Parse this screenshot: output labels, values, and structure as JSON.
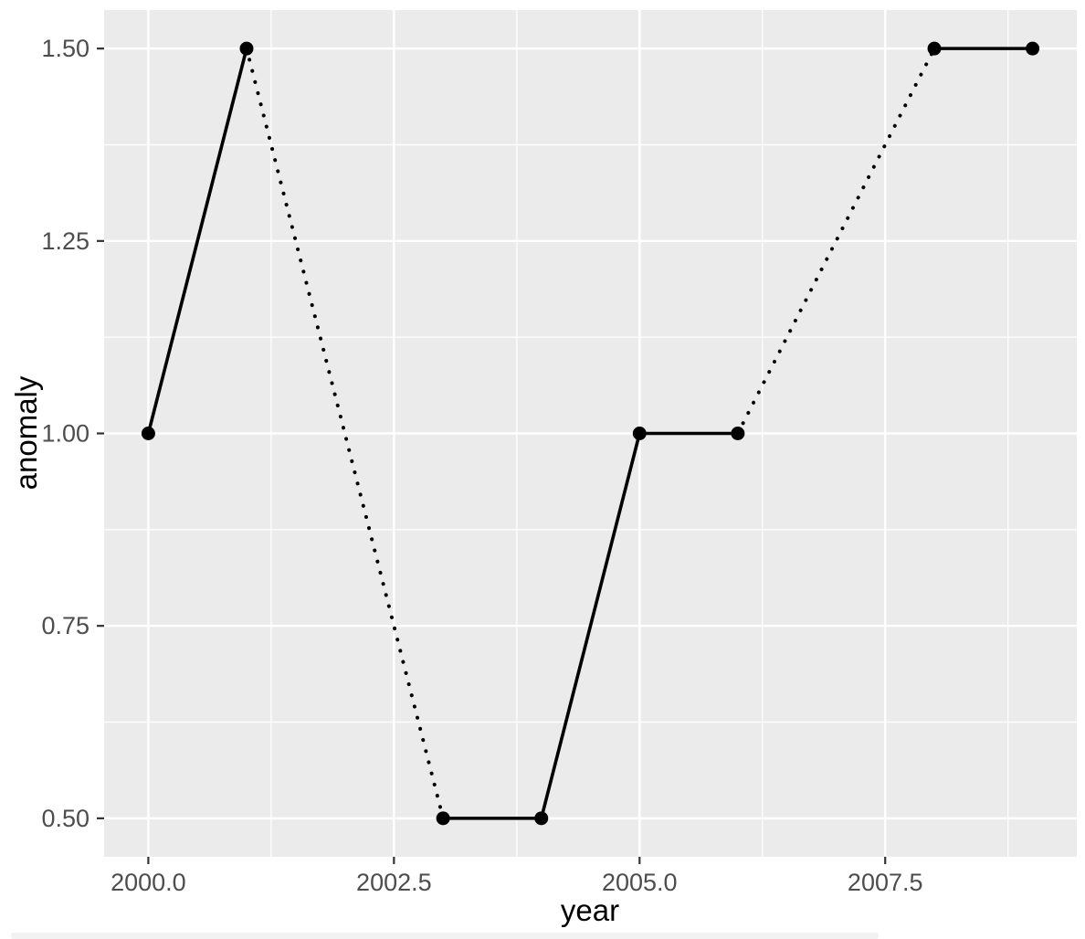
{
  "chart_data": {
    "type": "line",
    "title": "",
    "xlabel": "year",
    "ylabel": "anomaly",
    "points": [
      {
        "x": 2000,
        "y": 1.0
      },
      {
        "x": 2001,
        "y": 1.5
      },
      {
        "x": 2003,
        "y": 0.5
      },
      {
        "x": 2004,
        "y": 0.5
      },
      {
        "x": 2005,
        "y": 1.0
      },
      {
        "x": 2006,
        "y": 1.0
      },
      {
        "x": 2008,
        "y": 1.5
      },
      {
        "x": 2009,
        "y": 1.5
      }
    ],
    "segments": [
      {
        "from": 0,
        "to": 1,
        "style": "solid"
      },
      {
        "from": 1,
        "to": 2,
        "style": "dotted"
      },
      {
        "from": 2,
        "to": 3,
        "style": "solid"
      },
      {
        "from": 3,
        "to": 4,
        "style": "solid"
      },
      {
        "from": 4,
        "to": 5,
        "style": "solid"
      },
      {
        "from": 5,
        "to": 6,
        "style": "dotted"
      },
      {
        "from": 6,
        "to": 7,
        "style": "solid"
      }
    ],
    "x_ticks": [
      2000.0,
      2002.5,
      2005.0,
      2007.5
    ],
    "x_tick_labels": [
      "2000.0",
      "2002.5",
      "2005.0",
      "2007.5"
    ],
    "x_minor_ticks": [
      2001.25,
      2003.75,
      2006.25,
      2008.75
    ],
    "y_ticks": [
      0.5,
      0.75,
      1.0,
      1.25,
      1.5
    ],
    "y_tick_labels": [
      "0.50",
      "0.75",
      "1.00",
      "1.25",
      "1.50"
    ],
    "y_minor_ticks": [
      0.625,
      0.875,
      1.125,
      1.375
    ],
    "xlim": [
      1999.55,
      2009.45
    ],
    "ylim": [
      0.45,
      1.55
    ],
    "grid": true,
    "legend": false,
    "colors": {
      "figure_bg": "#FFFFFF",
      "panel_bg": "#EBEBEB",
      "grid_major": "#FFFFFF",
      "grid_minor": "#FFFFFF",
      "line": "#000000",
      "point": "#000000",
      "tick_mark": "#333333",
      "tick_label": "#4D4D4D",
      "axis_title": "#000000",
      "bottom_strip": "#F2F2F2"
    }
  }
}
